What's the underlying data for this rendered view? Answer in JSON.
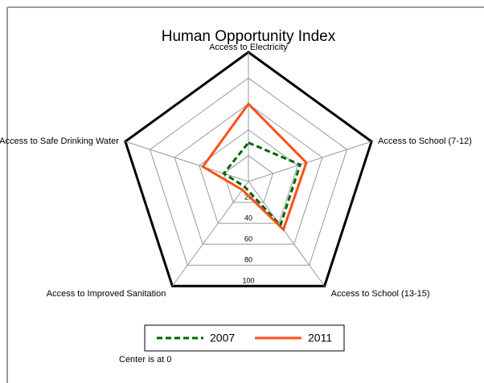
{
  "chart_data": {
    "type": "radar",
    "title": "Human Opportunity Index",
    "categories": [
      "Access to Electricity",
      "Access to School (7-12)",
      "Access to School (13-15)",
      "Access to Improved Sanitation",
      "Access to Safe Drinking Water"
    ],
    "series": [
      {
        "name": "2007",
        "color": "#006400",
        "dash": true,
        "values": [
          30,
          42,
          42,
          5,
          20
        ]
      },
      {
        "name": "2011",
        "color": "#ff4f17",
        "dash": false,
        "values": [
          60,
          47,
          46,
          8,
          37
        ]
      }
    ],
    "rlim": [
      0,
      100
    ],
    "rticks": [
      20,
      40,
      60,
      80,
      100
    ],
    "annotation": "Center is at 0"
  }
}
